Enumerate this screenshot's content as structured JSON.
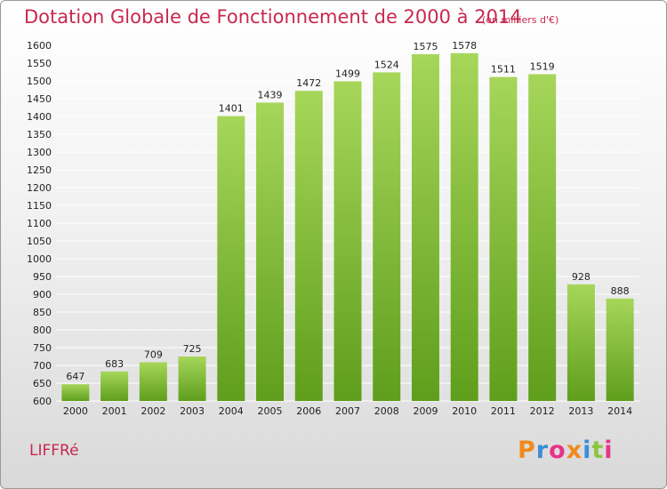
{
  "header": {
    "title": "Dotation Globale de Fonctionnement de 2000 à 2014",
    "unit": "(en milliers d'€)"
  },
  "footer": {
    "commune": "LIFFRé",
    "logo_text": "Proxiti"
  },
  "colors": {
    "title": "#c8284f",
    "bar_top": "#a6d65a",
    "bar_bottom": "#5f9e1c",
    "grid": "#ffffff",
    "logo": [
      "#f08a1d",
      "#3b8fd6",
      "#e8338a",
      "#f08a1d",
      "#3b8fd6",
      "#8cc63f",
      "#e8338a"
    ]
  },
  "chart_data": {
    "type": "bar",
    "title": "Dotation Globale de Fonctionnement de 2000 à 2014",
    "unit": "(en milliers d'€)",
    "categories": [
      "2000",
      "2001",
      "2002",
      "2003",
      "2004",
      "2005",
      "2006",
      "2007",
      "2008",
      "2009",
      "2010",
      "2011",
      "2012",
      "2013",
      "2014"
    ],
    "values": [
      647,
      683,
      709,
      725,
      1401,
      1439,
      1472,
      1499,
      1524,
      1575,
      1578,
      1511,
      1519,
      928,
      888
    ],
    "ylim": [
      600,
      1600
    ],
    "ytick_step": 50,
    "grid": true,
    "legend": "none"
  }
}
